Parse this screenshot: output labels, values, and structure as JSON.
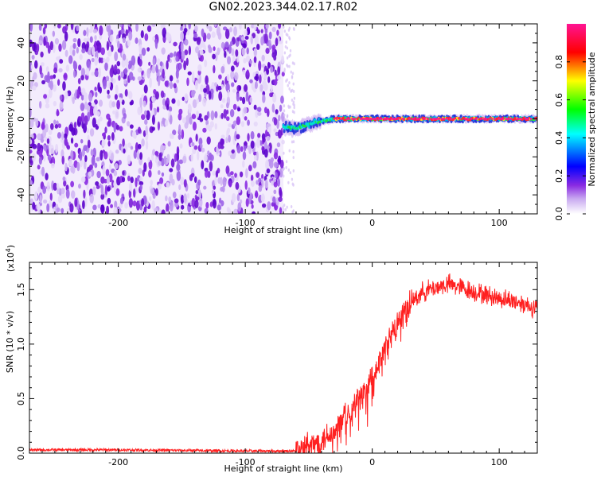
{
  "title": "GN02.2023.344.02.17.R02",
  "chart_data": [
    {
      "type": "heatmap",
      "xlabel": "Height of straight line (km)",
      "ylabel": "Frequency (Hz)",
      "xlim": [
        -270,
        130
      ],
      "ylim": [
        -50,
        50
      ],
      "x_ticks": [
        -200,
        -100,
        0,
        100
      ],
      "y_ticks": [
        -40,
        -20,
        0,
        20,
        40
      ],
      "noise_region_x": [
        -270,
        -70
      ],
      "signal_ridge": {
        "frequency_hz": 0,
        "x_start": -70,
        "x_end": 130,
        "description_points": [
          {
            "x": -70,
            "freq": -4
          },
          {
            "x": -60,
            "freq": -5
          },
          {
            "x": -45,
            "freq": -2
          },
          {
            "x": -30,
            "freq": 0
          },
          {
            "x": 0,
            "freq": 0
          },
          {
            "x": 130,
            "freq": 0
          }
        ]
      },
      "colorbar": {
        "label": "Normalized spectral amplitude",
        "min": 0.0,
        "max": 1.0,
        "ticks": [
          "0.0",
          "0.2",
          "0.4",
          "0.6",
          "0.8"
        ],
        "colormap": [
          "#ffffff",
          "#8a2be2",
          "#0000ff",
          "#00ffff",
          "#00ff00",
          "#ffff00",
          "#ff0000",
          "#ff1493"
        ]
      },
      "grid": false,
      "legend": "none"
    },
    {
      "type": "line",
      "xlabel": "Height of straight line (km)",
      "ylabel": "SNR (10 * v/v)",
      "y_multiplier": "(x10",
      "y_multiplier_exp": "4",
      "y_multiplier_close": ")",
      "xlim": [
        -270,
        130
      ],
      "ylim": [
        0,
        1.75
      ],
      "x_ticks": [
        -200,
        -100,
        0,
        100
      ],
      "y_ticks": [
        "0.0",
        "0.5",
        "1.0",
        "1.5"
      ],
      "series": [
        {
          "color": "#ff2020",
          "x": [
            -270,
            -200,
            -150,
            -100,
            -80,
            -60,
            -50,
            -40,
            -30,
            -20,
            -10,
            0,
            10,
            20,
            30,
            40,
            50,
            60,
            70,
            80,
            90,
            100,
            110,
            120,
            130
          ],
          "y": [
            0.03,
            0.03,
            0.025,
            0.02,
            0.02,
            0.02,
            0.05,
            0.12,
            0.22,
            0.35,
            0.5,
            0.68,
            0.95,
            1.2,
            1.38,
            1.48,
            1.52,
            1.55,
            1.52,
            1.48,
            1.45,
            1.42,
            1.4,
            1.37,
            1.32
          ]
        }
      ],
      "grid": false,
      "legend": "none"
    }
  ]
}
